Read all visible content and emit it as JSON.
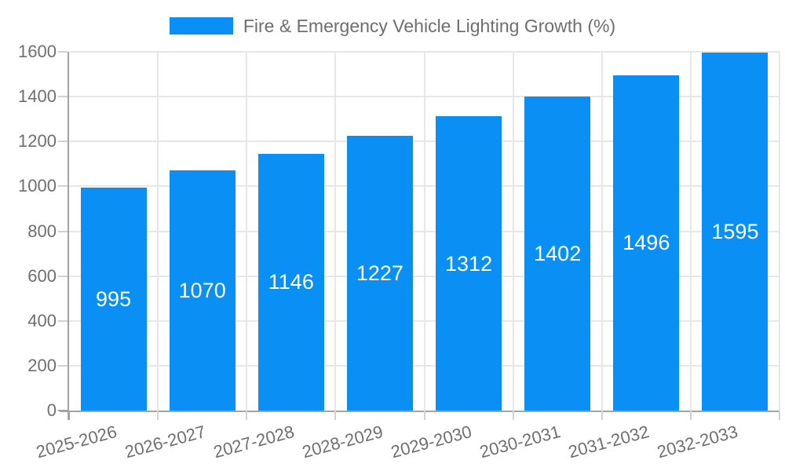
{
  "chart_data": {
    "type": "bar",
    "title": "Fire & Emergency Vehicle Lighting Growth (%)",
    "legend_position": "top",
    "categories": [
      "2025-2026",
      "2026-2027",
      "2027-2028",
      "2028-2029",
      "2029-2030",
      "2030-2031",
      "2031-2032",
      "2032-2033"
    ],
    "values": [
      995,
      1070,
      1146,
      1227,
      1312,
      1402,
      1496,
      1595
    ],
    "xlabel": "",
    "ylabel": "",
    "ylim": [
      0,
      1600
    ],
    "ytick_step": 200,
    "grid": true,
    "colors": {
      "bar": "#0a90f5",
      "bar_value_text": "#ffffff",
      "axis_line": "#a3a3a3",
      "gridline": "#e7e7e7",
      "tick_mark": "#d2d2d2",
      "axis_text": "#6f6f6f",
      "title_text": "#6e6e6e",
      "background": "#ffffff"
    }
  }
}
